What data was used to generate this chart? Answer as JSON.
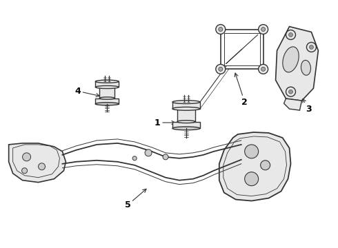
{
  "background_color": "#ffffff",
  "line_color": "#333333",
  "fill_color": "#e8e8e8",
  "fill_dark": "#cccccc",
  "figsize": [
    4.9,
    3.6
  ],
  "dpi": 100,
  "label_fontsize": 9
}
